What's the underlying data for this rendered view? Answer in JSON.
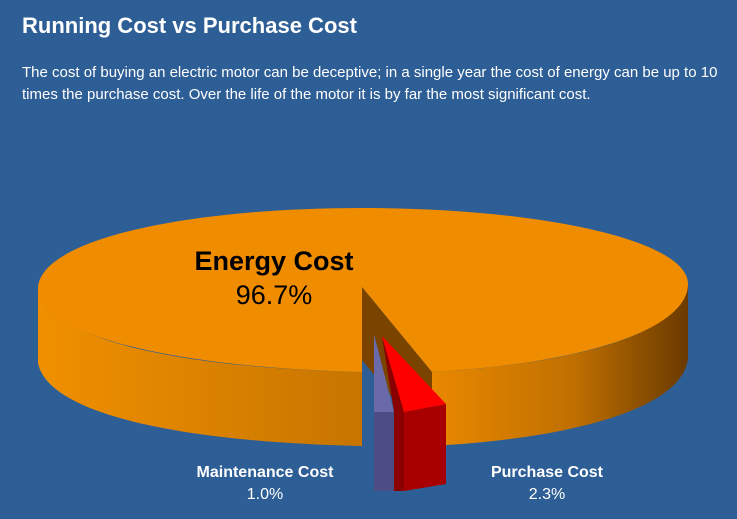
{
  "page": {
    "title": "Running Cost vs Purchase Cost",
    "intro": "The cost of buying an electric motor can be deceptive; in a single year the cost of energy can be up to 10 times the purchase cost. Over the life of the motor it is by far the most significant cost."
  },
  "chart_data": {
    "type": "pie",
    "style": "3d-exploded",
    "slices": [
      {
        "label": "Energy Cost",
        "value": 96.7,
        "display": "96.7%",
        "color": "#ef8c00",
        "side_color": "#b06400"
      },
      {
        "label": "Maintenance Cost",
        "value": 1.0,
        "display": "1.0%",
        "color": "#6a6aa8",
        "side_color": "#4d4d86"
      },
      {
        "label": "Purchase Cost",
        "value": 2.3,
        "display": "2.3%",
        "color": "#ff0000",
        "side_color": "#a80000"
      }
    ]
  }
}
